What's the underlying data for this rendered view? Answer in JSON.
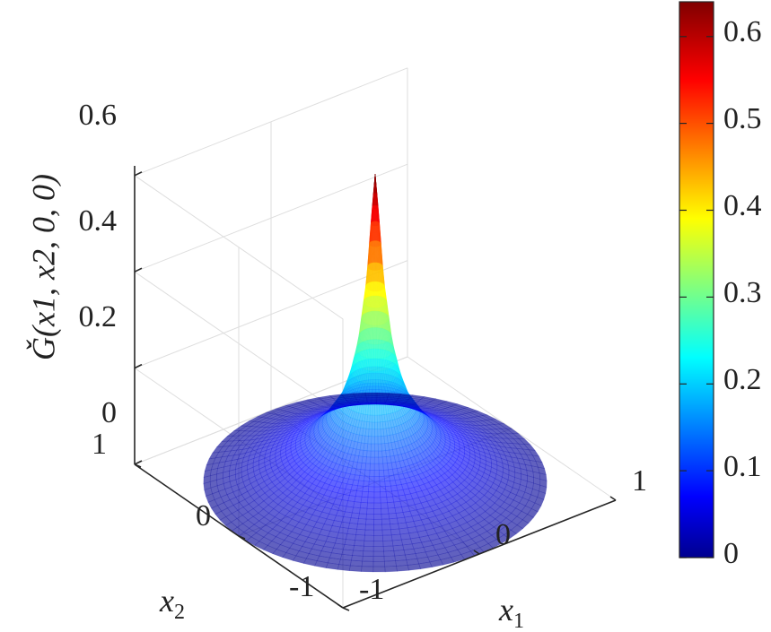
{
  "chart_data": {
    "type": "surface3d",
    "title": "",
    "xlabel": "x1",
    "ylabel": "x2",
    "zlabel": "Ǧ(x1, x2, 0, 0)",
    "x_ticks": [
      "-1",
      "0",
      "1"
    ],
    "y_ticks": [
      "-1",
      "0",
      "1"
    ],
    "z_ticks": [
      "0",
      "0.2",
      "0.4",
      "0.6"
    ],
    "xlim": [
      -1,
      1
    ],
    "ylim": [
      -1,
      1
    ],
    "zlim": [
      0,
      0.6
    ],
    "domain": "unit disk x1^2 + x2^2 <= 1",
    "peak": {
      "x1": 0,
      "x2": 0,
      "value": 0.64
    },
    "profile_r": [
      0.0,
      0.02,
      0.05,
      0.1,
      0.15,
      0.2,
      0.3,
      0.4,
      0.6,
      0.8,
      1.0
    ],
    "profile_value": [
      0.64,
      0.56,
      0.42,
      0.29,
      0.22,
      0.175,
      0.125,
      0.09,
      0.05,
      0.02,
      0.0
    ],
    "colormap": "jet",
    "colorbar": {
      "min": 0,
      "max": 0.64,
      "ticks": [
        "0",
        "0.1",
        "0.2",
        "0.3",
        "0.4",
        "0.5",
        "0.6"
      ]
    },
    "grid": true
  }
}
